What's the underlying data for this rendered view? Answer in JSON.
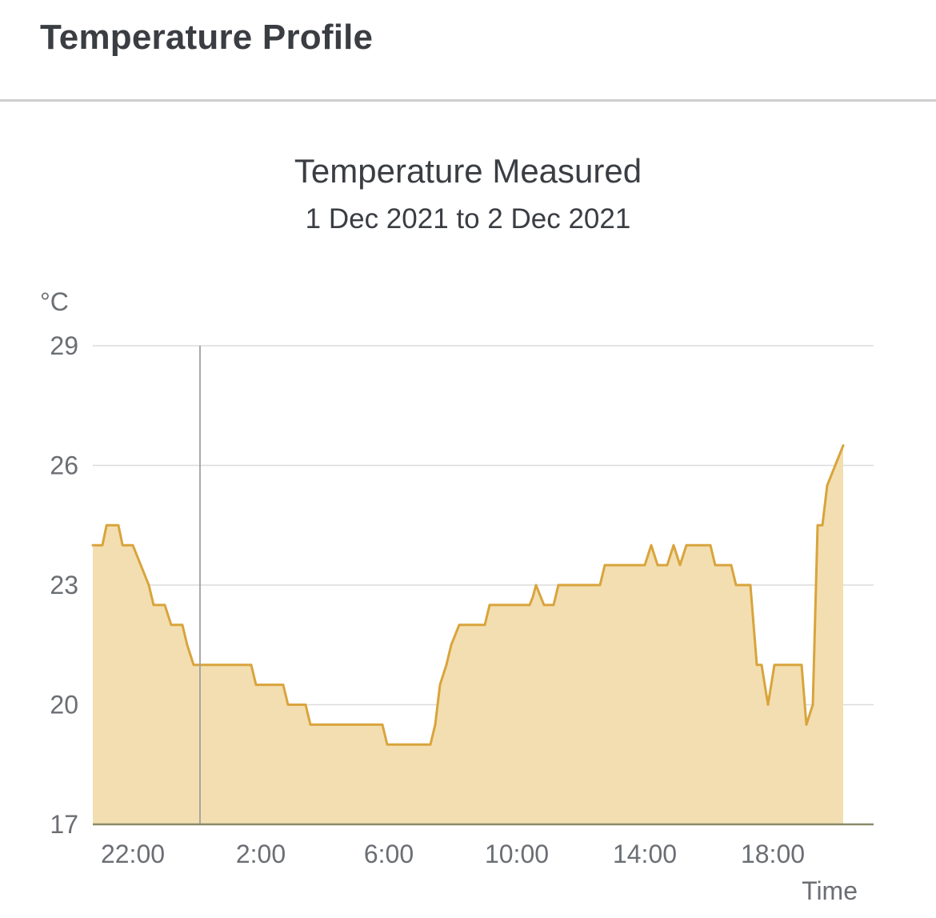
{
  "header": {
    "title": "Temperature Profile"
  },
  "chart_data": {
    "type": "area",
    "title": "Temperature Measured",
    "subtitle": "1 Dec 2021 to 2 Dec 2021",
    "ylabel": "°C",
    "xlabel": "Time",
    "ylim": [
      17,
      29
    ],
    "yticks": [
      17,
      20,
      23,
      26,
      29
    ],
    "xticks": [
      {
        "label": "22:00",
        "hour": 22
      },
      {
        "label": "2:00",
        "hour": 26
      },
      {
        "label": "6:00",
        "hour": 30
      },
      {
        "label": "10:00",
        "hour": 34
      },
      {
        "label": "14:00",
        "hour": 38
      },
      {
        "label": "18:00",
        "hour": 42
      }
    ],
    "xlim_hours": [
      20.75,
      45.15
    ],
    "cursor_hour": 24.1,
    "grid": true,
    "colors": {
      "line": "#d9a43c",
      "fill": "#f2deb0",
      "grid": "#dcdcdc",
      "axis": "#8a8a6a",
      "cursor": "#a0a0a0"
    },
    "series": [
      {
        "points": [
          [
            20.75,
            24.0
          ],
          [
            21.05,
            24.0
          ],
          [
            21.18,
            24.5
          ],
          [
            21.55,
            24.5
          ],
          [
            21.68,
            24.0
          ],
          [
            22.0,
            24.0
          ],
          [
            22.25,
            23.5
          ],
          [
            22.5,
            23.0
          ],
          [
            22.65,
            22.5
          ],
          [
            23.0,
            22.5
          ],
          [
            23.2,
            22.0
          ],
          [
            23.55,
            22.0
          ],
          [
            23.7,
            21.5
          ],
          [
            23.9,
            21.0
          ],
          [
            25.7,
            21.0
          ],
          [
            25.85,
            20.5
          ],
          [
            26.7,
            20.5
          ],
          [
            26.85,
            20.0
          ],
          [
            27.4,
            20.0
          ],
          [
            27.55,
            19.5
          ],
          [
            29.8,
            19.5
          ],
          [
            29.95,
            19.0
          ],
          [
            31.3,
            19.0
          ],
          [
            31.45,
            19.5
          ],
          [
            31.6,
            20.5
          ],
          [
            31.8,
            21.0
          ],
          [
            31.95,
            21.5
          ],
          [
            32.2,
            22.0
          ],
          [
            33.0,
            22.0
          ],
          [
            33.15,
            22.5
          ],
          [
            34.4,
            22.5
          ],
          [
            34.5,
            22.7
          ],
          [
            34.6,
            23.0
          ],
          [
            34.75,
            22.7
          ],
          [
            34.85,
            22.5
          ],
          [
            35.15,
            22.5
          ],
          [
            35.3,
            23.0
          ],
          [
            36.6,
            23.0
          ],
          [
            36.75,
            23.5
          ],
          [
            38.0,
            23.5
          ],
          [
            38.2,
            24.0
          ],
          [
            38.4,
            23.5
          ],
          [
            38.7,
            23.5
          ],
          [
            38.9,
            24.0
          ],
          [
            39.1,
            23.5
          ],
          [
            39.3,
            24.0
          ],
          [
            40.05,
            24.0
          ],
          [
            40.2,
            23.5
          ],
          [
            40.7,
            23.5
          ],
          [
            40.85,
            23.0
          ],
          [
            41.3,
            23.0
          ],
          [
            41.5,
            21.0
          ],
          [
            41.65,
            21.0
          ],
          [
            41.85,
            20.0
          ],
          [
            42.05,
            21.0
          ],
          [
            42.9,
            21.0
          ],
          [
            43.05,
            19.5
          ],
          [
            43.25,
            20.0
          ],
          [
            43.4,
            24.5
          ],
          [
            43.55,
            24.5
          ],
          [
            43.7,
            25.5
          ],
          [
            44.2,
            26.5
          ]
        ]
      }
    ]
  }
}
